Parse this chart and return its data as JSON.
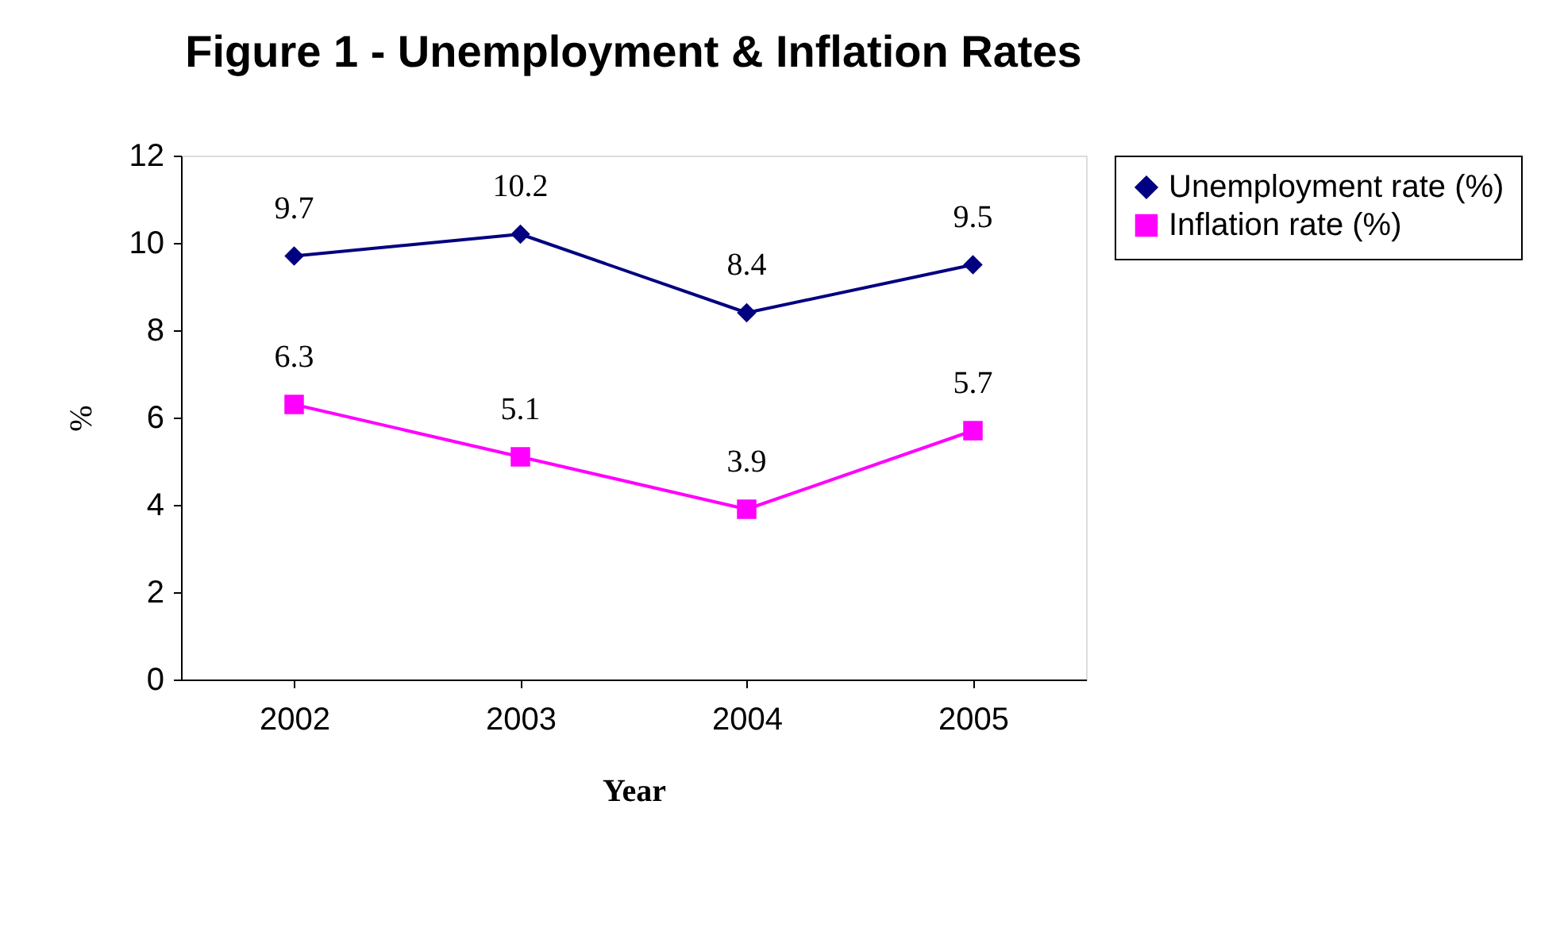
{
  "chart_data": {
    "type": "line",
    "title": "Figure 1 - Unemployment & Inflation Rates",
    "xlabel": "Year",
    "ylabel": "%",
    "categories": [
      "2002",
      "2003",
      "2004",
      "2005"
    ],
    "series": [
      {
        "name": "Unemployment rate (%)",
        "color": "#000080",
        "marker": "diamond",
        "values": [
          9.7,
          10.2,
          8.4,
          9.5
        ]
      },
      {
        "name": "Inflation rate (%)",
        "color": "#ff00ff",
        "marker": "square",
        "values": [
          6.3,
          5.1,
          3.9,
          5.7
        ]
      }
    ],
    "ylim": [
      0,
      12
    ],
    "yticks": [
      0,
      2,
      4,
      6,
      8,
      10,
      12
    ],
    "grid": false,
    "legend": "right",
    "data_labels": true,
    "line_style": "solid"
  }
}
